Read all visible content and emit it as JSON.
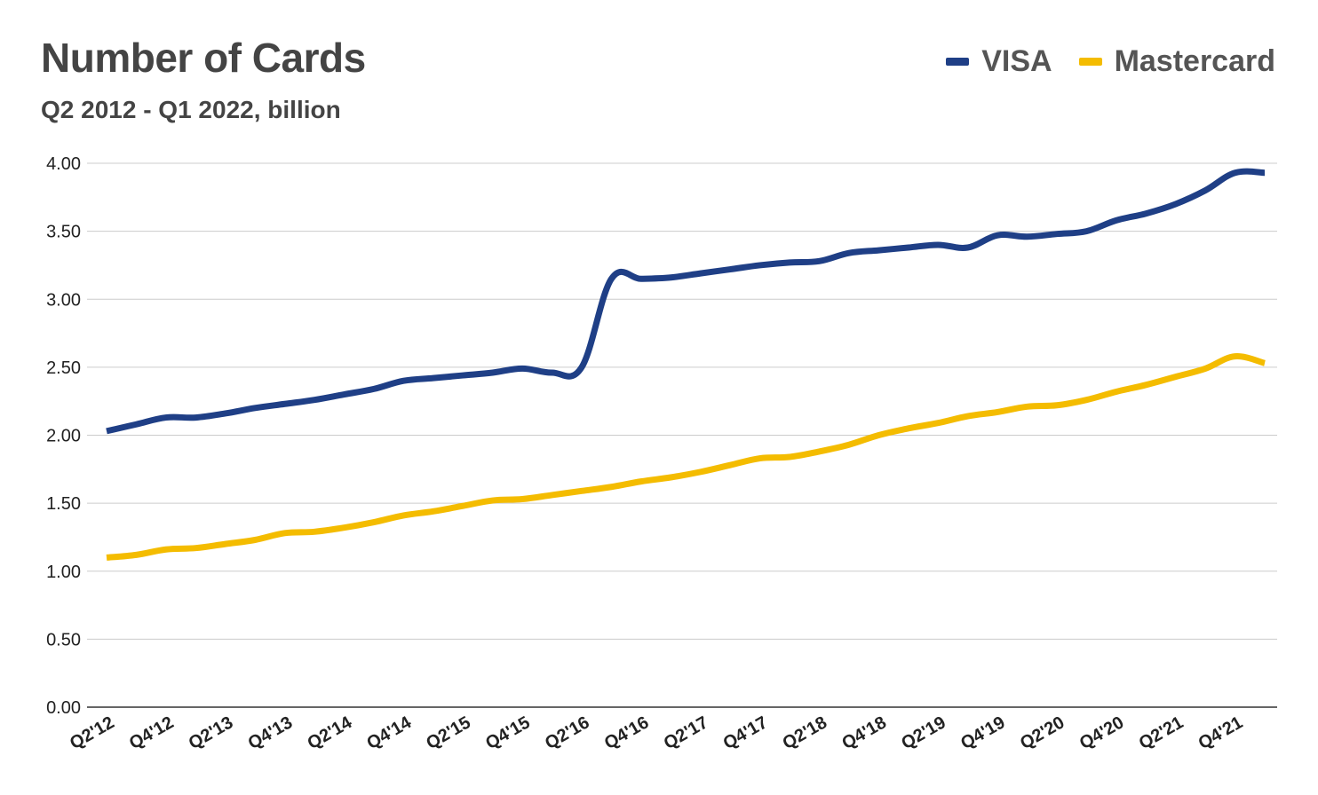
{
  "chart_data": {
    "type": "line",
    "title": "Number of Cards",
    "subtitle": "Q2 2012 - Q1 2022, billion",
    "xlabel": "",
    "ylabel": "",
    "ylim": [
      0,
      4
    ],
    "y_ticks": [
      "0.00",
      "0.50",
      "1.00",
      "1.50",
      "2.00",
      "2.50",
      "3.00",
      "3.50",
      "4.00"
    ],
    "grid": true,
    "legend_position": "top-right",
    "categories": [
      "Q2'12",
      "Q3'12",
      "Q4'12",
      "Q1'13",
      "Q2'13",
      "Q3'13",
      "Q4'13",
      "Q1'14",
      "Q2'14",
      "Q3'14",
      "Q4'14",
      "Q1'15",
      "Q2'15",
      "Q3'15",
      "Q4'15",
      "Q1'16",
      "Q2'16",
      "Q3'16",
      "Q4'16",
      "Q1'17",
      "Q2'17",
      "Q3'17",
      "Q4'17",
      "Q1'18",
      "Q2'18",
      "Q3'18",
      "Q4'18",
      "Q1'19",
      "Q2'19",
      "Q3'19",
      "Q4'19",
      "Q1'20",
      "Q2'20",
      "Q3'20",
      "Q4'20",
      "Q1'21",
      "Q2'21",
      "Q3'21",
      "Q4'21",
      "Q1'22"
    ],
    "x_tick_labels": [
      "Q2'12",
      "Q4'12",
      "Q2'13",
      "Q4'13",
      "Q2'14",
      "Q4'14",
      "Q2'15",
      "Q4'15",
      "Q2'16",
      "Q4'16",
      "Q2'17",
      "Q4'17",
      "Q2'18",
      "Q4'18",
      "Q2'19",
      "Q4'19",
      "Q2'20",
      "Q4'20",
      "Q2'21",
      "Q4'21"
    ],
    "series": [
      {
        "name": "VISA",
        "color": "#1F3F86",
        "values": [
          2.03,
          2.08,
          2.13,
          2.13,
          2.16,
          2.2,
          2.23,
          2.26,
          2.3,
          2.34,
          2.4,
          2.42,
          2.44,
          2.46,
          2.49,
          2.46,
          2.5,
          3.15,
          3.15,
          3.16,
          3.19,
          3.22,
          3.25,
          3.27,
          3.28,
          3.34,
          3.36,
          3.38,
          3.4,
          3.38,
          3.47,
          3.46,
          3.48,
          3.5,
          3.58,
          3.63,
          3.7,
          3.8,
          3.93,
          3.93
        ]
      },
      {
        "name": "Mastercard",
        "color": "#F4BC00",
        "values": [
          1.1,
          1.12,
          1.16,
          1.17,
          1.2,
          1.23,
          1.28,
          1.29,
          1.32,
          1.36,
          1.41,
          1.44,
          1.48,
          1.52,
          1.53,
          1.56,
          1.59,
          1.62,
          1.66,
          1.69,
          1.73,
          1.78,
          1.83,
          1.84,
          1.88,
          1.93,
          2.0,
          2.05,
          2.09,
          2.14,
          2.17,
          2.21,
          2.22,
          2.26,
          2.32,
          2.37,
          2.43,
          2.49,
          2.58,
          2.53
        ]
      }
    ]
  }
}
